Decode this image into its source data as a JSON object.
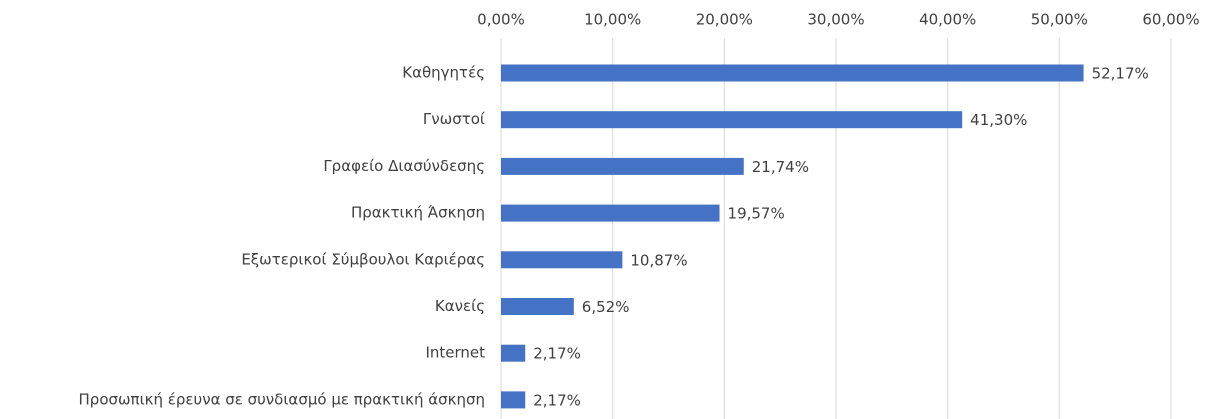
{
  "chart_data": {
    "type": "hbar",
    "categories": [
      "Καθηγητές",
      "Γνωστοί",
      "Γραφείο Διασύνδεσης",
      "Πρακτική Άσκηση",
      "Εξωτερικοί Σύμβουλοι Καριέρας",
      "Κανείς",
      "Internet",
      "Προσωπική έρευνα σε συνδιασμό με πρακτική άσκηση"
    ],
    "values": [
      52.17,
      41.3,
      21.74,
      19.57,
      10.87,
      6.52,
      2.17,
      2.17
    ],
    "value_labels": [
      "52,17%",
      "41,30%",
      "21,74%",
      "19,57%",
      "10,87%",
      "6,52%",
      "2,17%",
      "2,17%"
    ],
    "color": "#4472c4",
    "xlim": [
      0,
      60
    ],
    "xticks": [
      {
        "value": 0,
        "label": "0,00%"
      },
      {
        "value": 10,
        "label": "10,00%"
      },
      {
        "value": 20,
        "label": "20,00%"
      },
      {
        "value": 30,
        "label": "30,00%"
      },
      {
        "value": 40,
        "label": "40,00%"
      },
      {
        "value": 50,
        "label": "50,00%"
      },
      {
        "value": 60,
        "label": "60,00%"
      }
    ],
    "grid": true
  }
}
